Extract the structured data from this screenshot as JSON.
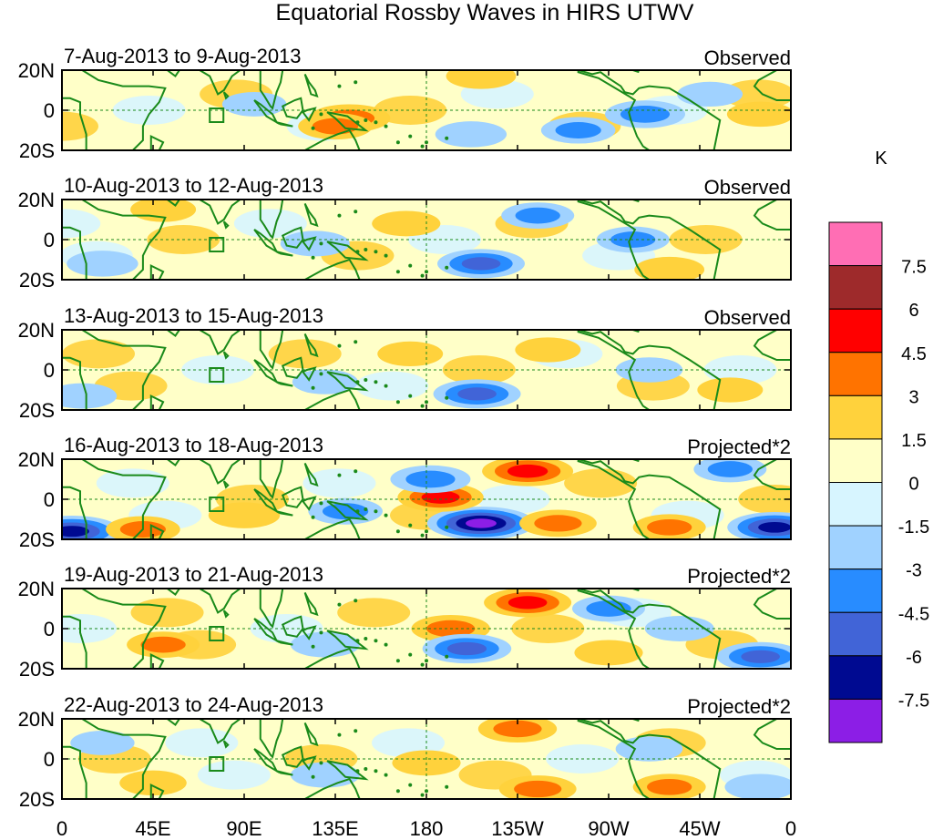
{
  "chart_data": {
    "type": "heatmap",
    "title": "Equatorial Rossby Waves in HIRS UTWV",
    "colorbar": {
      "unit_label": "K",
      "levels": [
        "7.5",
        "6",
        "4.5",
        "3",
        "1.5",
        "0",
        "-1.5",
        "-3",
        "-4.5",
        "-6",
        "-7.5"
      ],
      "colors": [
        "#ff6eb4",
        "#9e2a2b",
        "#ff0000",
        "#ff7300",
        "#ffd23c",
        "#ffffc8",
        "#d7f5ff",
        "#a0d2ff",
        "#288cff",
        "#4164d7",
        "#000a91",
        "#8c1ee6"
      ]
    },
    "x_tick_labels": [
      "0",
      "45E",
      "90E",
      "135E",
      "180",
      "135W",
      "90W",
      "45W",
      "0"
    ],
    "xlim": [
      0,
      360
    ],
    "ylim": [
      -20,
      20
    ],
    "panels": [
      {
        "date_range": "7-Aug-2013 to 9-Aug-2013",
        "label": "Observed",
        "y_tick_labels": [
          "20N",
          "0",
          "20S"
        ]
      },
      {
        "date_range": "10-Aug-2013 to 12-Aug-2013",
        "label": "Observed",
        "y_tick_labels": [
          "20N",
          "0",
          "20S"
        ]
      },
      {
        "date_range": "13-Aug-2013 to 15-Aug-2013",
        "label": "Observed",
        "y_tick_labels": [
          "20N",
          "0",
          "20S"
        ]
      },
      {
        "date_range": "16-Aug-2013 to 18-Aug-2013",
        "label": "Projected*2",
        "y_tick_labels": [
          "20N",
          "0",
          "20S"
        ]
      },
      {
        "date_range": "19-Aug-2013 to 21-Aug-2013",
        "label": "Projected*2",
        "y_tick_labels": [
          "20N",
          "0",
          "20S"
        ]
      },
      {
        "date_range": "22-Aug-2013 to 24-Aug-2013",
        "label": "Projected*2",
        "y_tick_labels": [
          "20N",
          "0",
          "20S"
        ]
      }
    ],
    "anomaly_features": [
      [
        {
          "lon": 142,
          "lat": -4,
          "value": 4.2
        },
        {
          "lon": 135,
          "lat": -8,
          "value": 3.2
        },
        {
          "lon": 207,
          "lat": 17,
          "value": 2.6
        },
        {
          "lon": 288,
          "lat": -2,
          "value": -4.0
        },
        {
          "lon": 255,
          "lat": -10,
          "value": -3.2
        },
        {
          "lon": 202,
          "lat": -12,
          "value": -2.8
        },
        {
          "lon": 95,
          "lat": 3,
          "value": -1.8
        },
        {
          "lon": 345,
          "lat": -2,
          "value": 2.2
        },
        {
          "lon": 320,
          "lat": 8,
          "value": -2.0
        }
      ],
      [
        {
          "lon": 207,
          "lat": -12,
          "value": -5.0
        },
        {
          "lon": 235,
          "lat": 12,
          "value": -3.0
        },
        {
          "lon": 170,
          "lat": 8,
          "value": 2.4
        },
        {
          "lon": 300,
          "lat": -15,
          "value": 2.6
        },
        {
          "lon": 20,
          "lat": -12,
          "value": -2.8
        },
        {
          "lon": 282,
          "lat": 0,
          "value": -3.0
        },
        {
          "lon": 125,
          "lat": -2,
          "value": -2.5
        },
        {
          "lon": 50,
          "lat": 15,
          "value": 2.0
        }
      ],
      [
        {
          "lon": 205,
          "lat": -12,
          "value": -5.0
        },
        {
          "lon": 240,
          "lat": 10,
          "value": 2.0
        },
        {
          "lon": 172,
          "lat": 8,
          "value": 2.0
        },
        {
          "lon": 10,
          "lat": -13,
          "value": -2.5
        },
        {
          "lon": 290,
          "lat": 0,
          "value": -2.2
        },
        {
          "lon": 130,
          "lat": -6,
          "value": -2.0
        },
        {
          "lon": 330,
          "lat": -10,
          "value": 2.0
        }
      ],
      [
        {
          "lon": 207,
          "lat": -12,
          "value": -7.8
        },
        {
          "lon": 187,
          "lat": 1,
          "value": 4.8
        },
        {
          "lon": 230,
          "lat": 14,
          "value": 5.5
        },
        {
          "lon": 5,
          "lat": -16,
          "value": -6.5
        },
        {
          "lon": 352,
          "lat": -14,
          "value": -6.0
        },
        {
          "lon": 245,
          "lat": -12,
          "value": 3.6
        },
        {
          "lon": 182,
          "lat": 10,
          "value": -4.0
        },
        {
          "lon": 330,
          "lat": 15,
          "value": -3.0
        },
        {
          "lon": 40,
          "lat": -15,
          "value": 3.2
        },
        {
          "lon": 90,
          "lat": -8,
          "value": 2.8
        },
        {
          "lon": 300,
          "lat": -14,
          "value": 3.0
        },
        {
          "lon": 140,
          "lat": -6,
          "value": -3.2
        }
      ],
      [
        {
          "lon": 230,
          "lat": 13,
          "value": 5.0
        },
        {
          "lon": 192,
          "lat": 0,
          "value": 3.8
        },
        {
          "lon": 200,
          "lat": -10,
          "value": -5.2
        },
        {
          "lon": 345,
          "lat": -14,
          "value": -5.0
        },
        {
          "lon": 270,
          "lat": 10,
          "value": -3.0
        },
        {
          "lon": 50,
          "lat": -8,
          "value": 3.0
        },
        {
          "lon": 130,
          "lat": -8,
          "value": -2.5
        },
        {
          "lon": 305,
          "lat": 0,
          "value": -2.5
        },
        {
          "lon": 270,
          "lat": -12,
          "value": 2.4
        }
      ],
      [
        {
          "lon": 225,
          "lat": 15,
          "value": 3.8
        },
        {
          "lon": 235,
          "lat": -15,
          "value": 3.6
        },
        {
          "lon": 300,
          "lat": -14,
          "value": 3.0
        },
        {
          "lon": 180,
          "lat": -2,
          "value": 2.4
        },
        {
          "lon": 130,
          "lat": -8,
          "value": -2.5
        },
        {
          "lon": 345,
          "lat": -14,
          "value": -2.8
        },
        {
          "lon": 45,
          "lat": -12,
          "value": 2.2
        },
        {
          "lon": 290,
          "lat": 5,
          "value": -2.2
        },
        {
          "lon": 20,
          "lat": 8,
          "value": -1.8
        }
      ]
    ]
  }
}
